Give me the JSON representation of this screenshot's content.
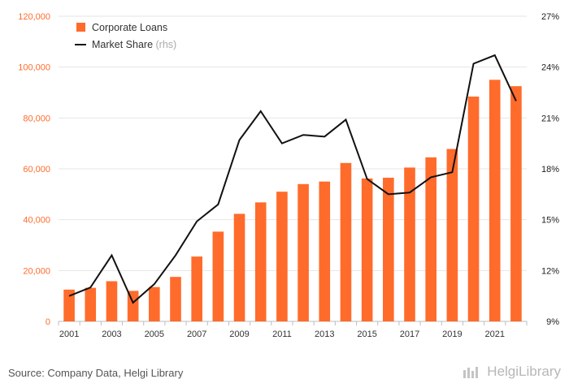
{
  "chart_data": {
    "type": "bar",
    "categories": [
      "2001",
      "2002",
      "2003",
      "2004",
      "2005",
      "2006",
      "2007",
      "2008",
      "2009",
      "2010",
      "2011",
      "2012",
      "2013",
      "2014",
      "2015",
      "2016",
      "2017",
      "2018",
      "2019",
      "2020",
      "2021",
      "2022"
    ],
    "x_tick_labels": [
      "2001",
      "2003",
      "2005",
      "2007",
      "2009",
      "2011",
      "2013",
      "2015",
      "2017",
      "2019",
      "2021"
    ],
    "series": [
      {
        "name": "Corporate Loans",
        "type": "bar",
        "axis": "left",
        "color": "#ff6b2b",
        "values": [
          12500,
          13200,
          15800,
          12000,
          13500,
          17500,
          25500,
          35300,
          42300,
          46800,
          51000,
          54000,
          55000,
          62300,
          56200,
          56500,
          60500,
          64500,
          67800,
          88400,
          95000,
          92500
        ]
      },
      {
        "name": "Market Share",
        "legend_suffix": "(rhs)",
        "type": "line",
        "axis": "right",
        "color": "#111111",
        "values": [
          10.5,
          11.0,
          12.9,
          10.1,
          11.2,
          12.9,
          14.9,
          15.9,
          19.7,
          21.4,
          19.5,
          20.0,
          19.9,
          20.9,
          17.4,
          16.5,
          16.6,
          17.5,
          17.8,
          24.2,
          24.7,
          22.0
        ]
      }
    ],
    "y_left": {
      "min": 0,
      "max": 120000,
      "ticks": [
        "0",
        "20,000",
        "40,000",
        "60,000",
        "80,000",
        "100,000",
        "120,000"
      ],
      "tick_color": "#ff6b2b"
    },
    "y_right": {
      "min": 9,
      "max": 27,
      "ticks": [
        "9%",
        "12%",
        "15%",
        "18%",
        "21%",
        "24%",
        "27%"
      ]
    },
    "grid": true,
    "legend_position": "top-left"
  },
  "footer": {
    "source": "Source: Company Data, Helgi Library",
    "brand": "HelgiLibrary"
  }
}
